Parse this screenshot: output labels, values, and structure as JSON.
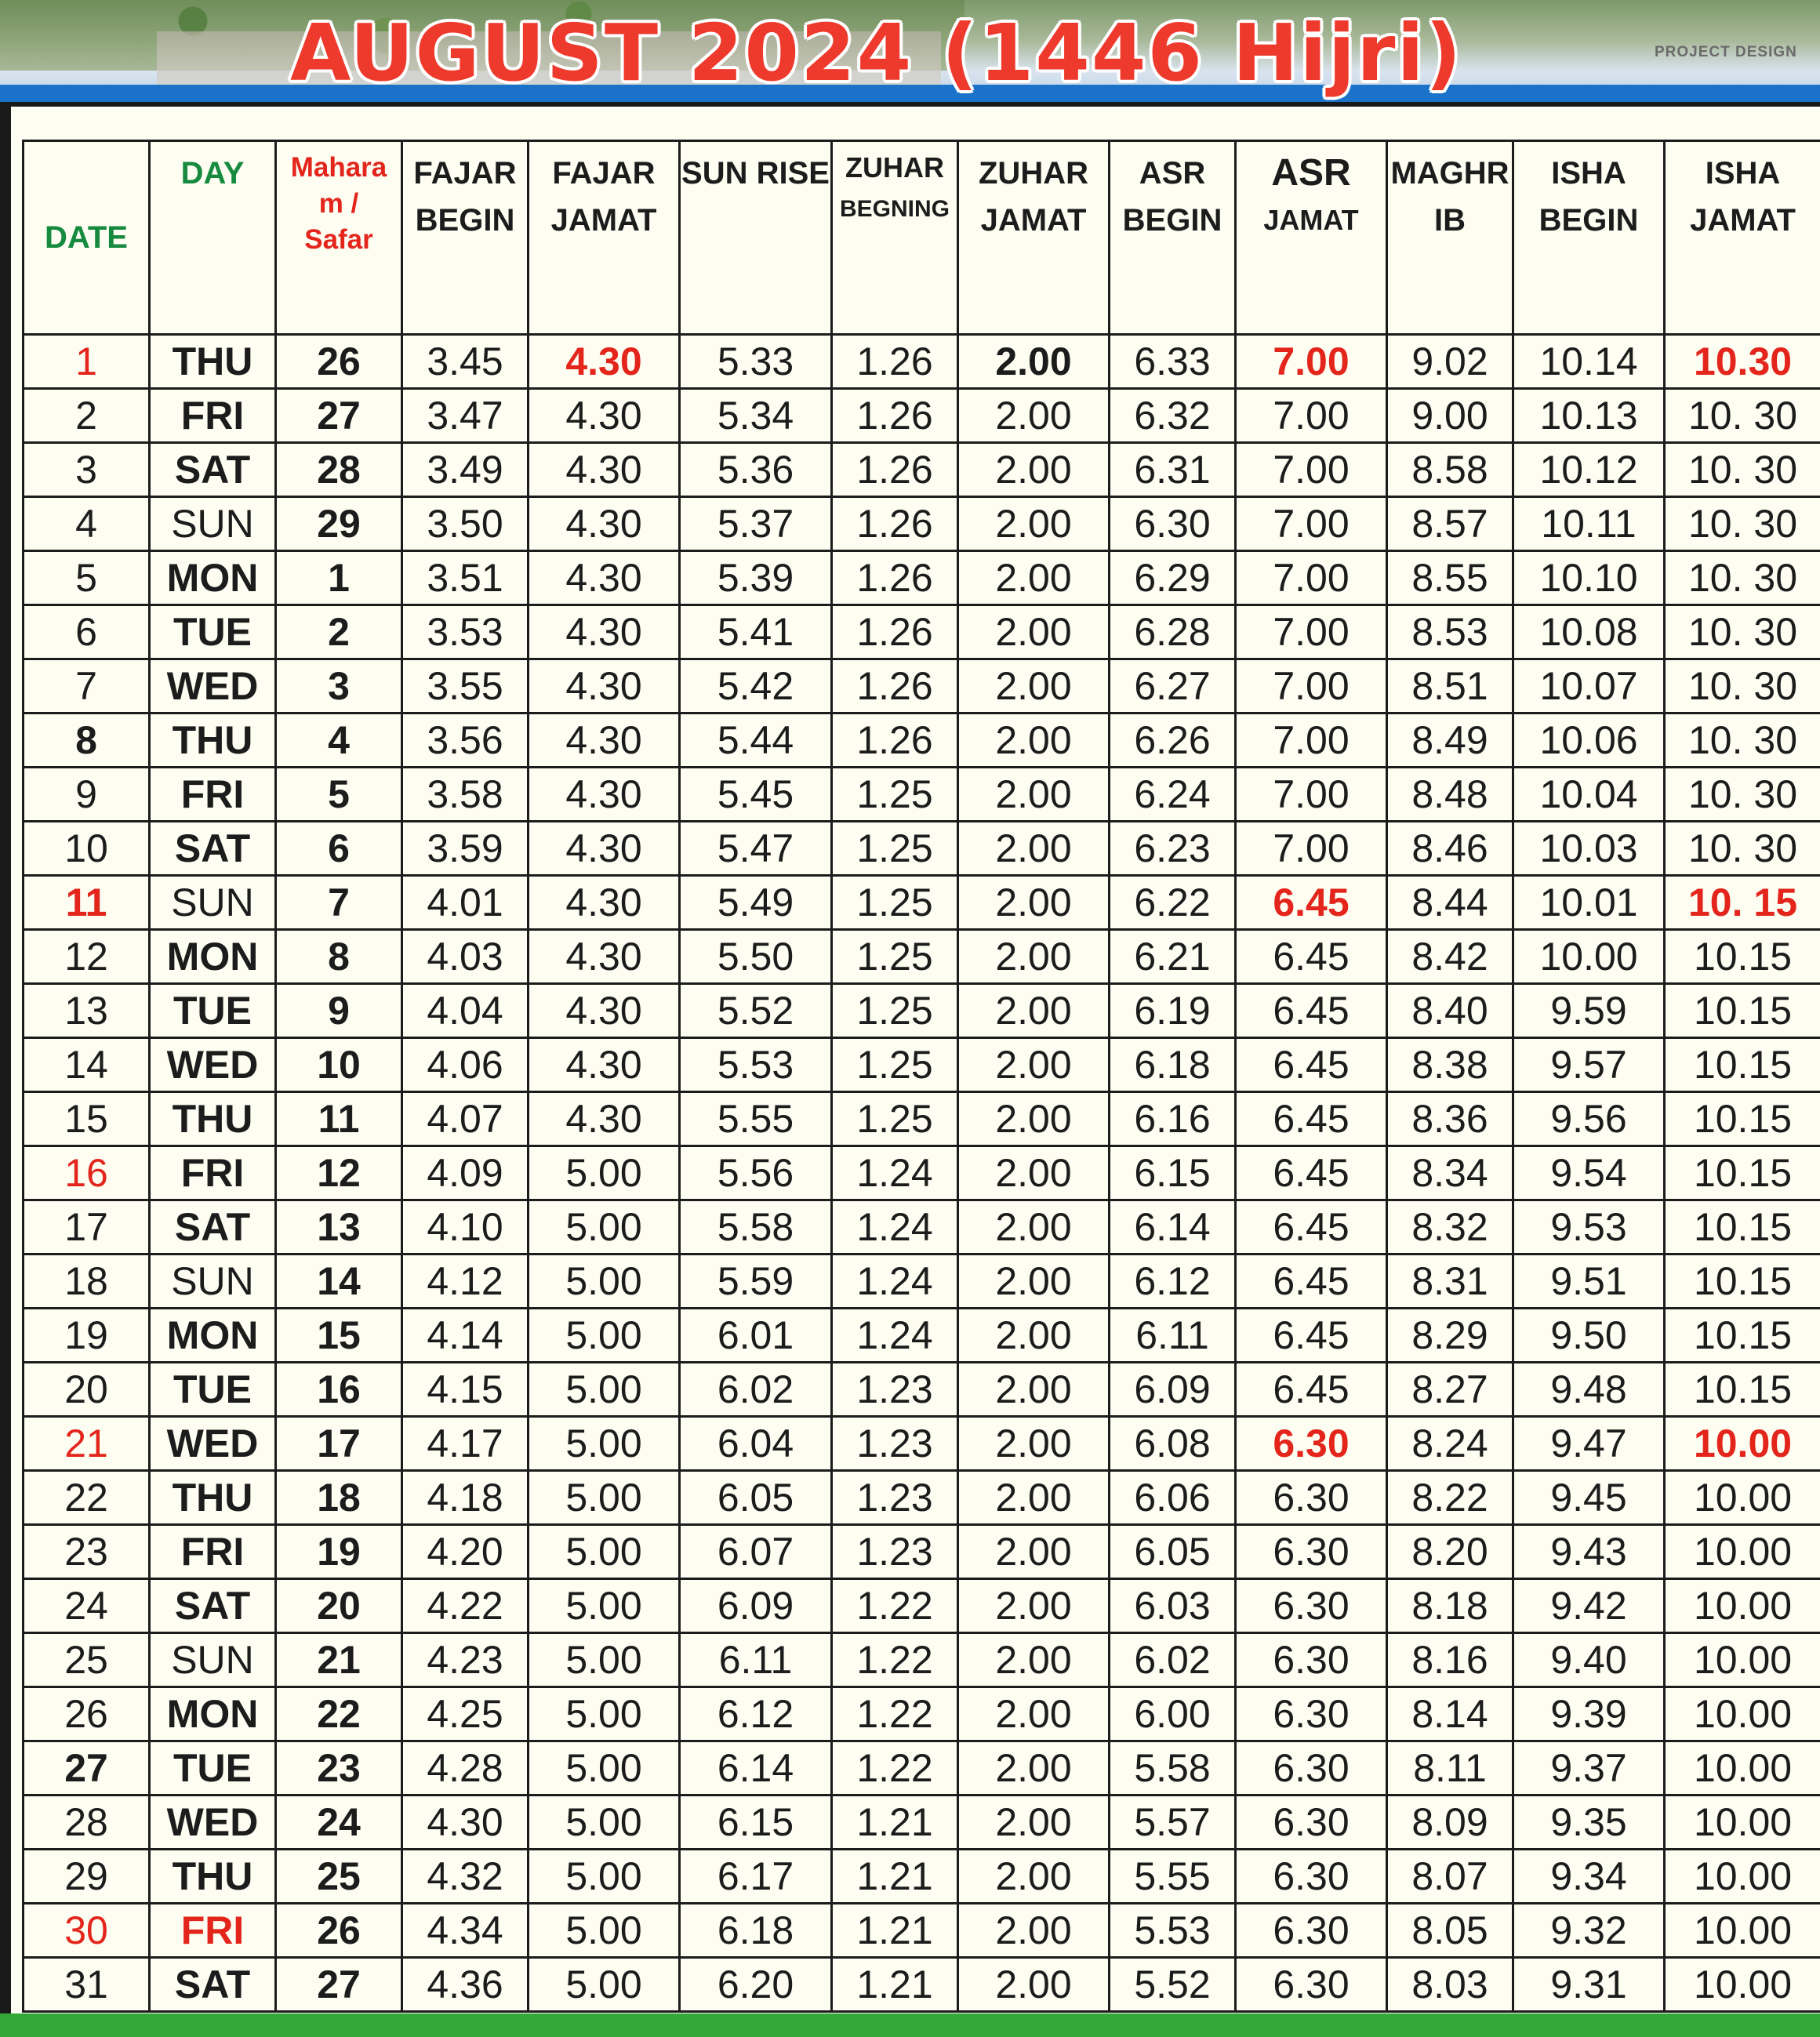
{
  "header": {
    "title": "AUGUST 2024  (1446 Hijri)",
    "credit": "PROJECT DESIGN"
  },
  "columns": [
    {
      "l1": "DATE",
      "l2": ""
    },
    {
      "l1": "DAY",
      "l2": ""
    },
    {
      "l1": "Mahara m /",
      "l2": "Safar"
    },
    {
      "l1": "FAJAR",
      "l2": "BEGIN"
    },
    {
      "l1": "FAJAR",
      "l2": "JAMAT"
    },
    {
      "l1": "SUN RISE",
      "l2": ""
    },
    {
      "l1": "ZUHAR",
      "l2": "BEGNING"
    },
    {
      "l1": "ZUHAR",
      "l2": "JAMAT"
    },
    {
      "l1": "ASR",
      "l2": "BEGIN"
    },
    {
      "l1": "ASR",
      "l2": "JAMAT"
    },
    {
      "l1": "MAGHR",
      "l2": "IB"
    },
    {
      "l1": "ISHA",
      "l2": "BEGIN"
    },
    {
      "l1": "ISHA",
      "l2": "JAMAT"
    }
  ],
  "rows": [
    [
      "1",
      "THU",
      "26",
      "3.45",
      "4.30",
      "5.33",
      "1.26",
      "2.00",
      "6.33",
      "7.00",
      "9.02",
      "10.14",
      "10.30"
    ],
    [
      "2",
      "FRI",
      "27",
      "3.47",
      "4.30",
      "5.34",
      "1.26",
      "2.00",
      "6.32",
      "7.00",
      "9.00",
      "10.13",
      "10. 30"
    ],
    [
      "3",
      "SAT",
      "28",
      "3.49",
      "4.30",
      "5.36",
      "1.26",
      "2.00",
      "6.31",
      "7.00",
      "8.58",
      "10.12",
      "10. 30"
    ],
    [
      "4",
      "SUN",
      "29",
      "3.50",
      "4.30",
      "5.37",
      "1.26",
      "2.00",
      "6.30",
      "7.00",
      "8.57",
      "10.11",
      "10. 30"
    ],
    [
      "5",
      "MON",
      "1",
      "3.51",
      "4.30",
      "5.39",
      "1.26",
      "2.00",
      "6.29",
      "7.00",
      "8.55",
      "10.10",
      "10. 30"
    ],
    [
      "6",
      "TUE",
      "2",
      "3.53",
      "4.30",
      "5.41",
      "1.26",
      "2.00",
      "6.28",
      "7.00",
      "8.53",
      "10.08",
      "10. 30"
    ],
    [
      "7",
      "WED",
      "3",
      "3.55",
      "4.30",
      "5.42",
      "1.26",
      "2.00",
      "6.27",
      "7.00",
      "8.51",
      "10.07",
      "10. 30"
    ],
    [
      "8",
      "THU",
      "4",
      "3.56",
      "4.30",
      "5.44",
      "1.26",
      "2.00",
      "6.26",
      "7.00",
      "8.49",
      "10.06",
      "10. 30"
    ],
    [
      "9",
      "FRI",
      "5",
      "3.58",
      "4.30",
      "5.45",
      "1.25",
      "2.00",
      "6.24",
      "7.00",
      "8.48",
      "10.04",
      "10. 30"
    ],
    [
      "10",
      "SAT",
      "6",
      "3.59",
      "4.30",
      "5.47",
      "1.25",
      "2.00",
      "6.23",
      "7.00",
      "8.46",
      "10.03",
      "10. 30"
    ],
    [
      "11",
      "SUN",
      "7",
      "4.01",
      "4.30",
      "5.49",
      "1.25",
      "2.00",
      "6.22",
      "6.45",
      "8.44",
      "10.01",
      "10. 15"
    ],
    [
      "12",
      "MON",
      "8",
      "4.03",
      "4.30",
      "5.50",
      "1.25",
      "2.00",
      "6.21",
      "6.45",
      "8.42",
      "10.00",
      "10.15"
    ],
    [
      "13",
      "TUE",
      "9",
      "4.04",
      "4.30",
      "5.52",
      "1.25",
      "2.00",
      "6.19",
      "6.45",
      "8.40",
      "9.59",
      "10.15"
    ],
    [
      "14",
      "WED",
      "10",
      "4.06",
      "4.30",
      "5.53",
      "1.25",
      "2.00",
      "6.18",
      "6.45",
      "8.38",
      "9.57",
      "10.15"
    ],
    [
      "15",
      "THU",
      "11",
      "4.07",
      "4.30",
      "5.55",
      "1.25",
      "2.00",
      "6.16",
      "6.45",
      "8.36",
      "9.56",
      "10.15"
    ],
    [
      "16",
      "FRI",
      "12",
      "4.09",
      "5.00",
      "5.56",
      "1.24",
      "2.00",
      "6.15",
      "6.45",
      "8.34",
      "9.54",
      "10.15"
    ],
    [
      "17",
      "SAT",
      "13",
      "4.10",
      "5.00",
      "5.58",
      "1.24",
      "2.00",
      "6.14",
      "6.45",
      "8.32",
      "9.53",
      "10.15"
    ],
    [
      "18",
      "SUN",
      "14",
      "4.12",
      "5.00",
      "5.59",
      "1.24",
      "2.00",
      "6.12",
      "6.45",
      "8.31",
      "9.51",
      "10.15"
    ],
    [
      "19",
      "MON",
      "15",
      "4.14",
      "5.00",
      "6.01",
      "1.24",
      "2.00",
      "6.11",
      "6.45",
      "8.29",
      "9.50",
      "10.15"
    ],
    [
      "20",
      "TUE",
      "16",
      "4.15",
      "5.00",
      "6.02",
      "1.23",
      "2.00",
      "6.09",
      "6.45",
      "8.27",
      "9.48",
      "10.15"
    ],
    [
      "21",
      "WED",
      "17",
      "4.17",
      "5.00",
      "6.04",
      "1.23",
      "2.00",
      "6.08",
      "6.30",
      "8.24",
      "9.47",
      "10.00"
    ],
    [
      "22",
      "THU",
      "18",
      "4.18",
      "5.00",
      "6.05",
      "1.23",
      "2.00",
      "6.06",
      "6.30",
      "8.22",
      "9.45",
      "10.00"
    ],
    [
      "23",
      "FRI",
      "19",
      "4.20",
      "5.00",
      "6.07",
      "1.23",
      "2.00",
      "6.05",
      "6.30",
      "8.20",
      "9.43",
      "10.00"
    ],
    [
      "24",
      "SAT",
      "20",
      "4.22",
      "5.00",
      "6.09",
      "1.22",
      "2.00",
      "6.03",
      "6.30",
      "8.18",
      "9.42",
      "10.00"
    ],
    [
      "25",
      "SUN",
      "21",
      "4.23",
      "5.00",
      "6.11",
      "1.22",
      "2.00",
      "6.02",
      "6.30",
      "8.16",
      "9.40",
      "10.00"
    ],
    [
      "26",
      "MON",
      "22",
      "4.25",
      "5.00",
      "6.12",
      "1.22",
      "2.00",
      "6.00",
      "6.30",
      "8.14",
      "9.39",
      "10.00"
    ],
    [
      "27",
      "TUE",
      "23",
      "4.28",
      "5.00",
      "6.14",
      "1.22",
      "2.00",
      "5.58",
      "6.30",
      "8.11",
      "9.37",
      "10.00"
    ],
    [
      "28",
      "WED",
      "24",
      "4.30",
      "5.00",
      "6.15",
      "1.21",
      "2.00",
      "5.57",
      "6.30",
      "8.09",
      "9.35",
      "10.00"
    ],
    [
      "29",
      "THU",
      "25",
      "4.32",
      "5.00",
      "6.17",
      "1.21",
      "2.00",
      "5.55",
      "6.30",
      "8.07",
      "9.34",
      "10.00"
    ],
    [
      "30",
      "FRI",
      "26",
      "4.34",
      "5.00",
      "6.18",
      "1.21",
      "2.00",
      "5.53",
      "6.30",
      "8.05",
      "9.32",
      "10.00"
    ],
    [
      "31",
      "SAT",
      "27",
      "4.36",
      "5.00",
      "6.20",
      "1.21",
      "2.00",
      "5.52",
      "6.30",
      "8.03",
      "9.31",
      "10.00"
    ]
  ],
  "highlights": {
    "red_dates": [
      "1",
      "11",
      "16",
      "21",
      "30"
    ],
    "bold_green_dates": [
      "8",
      "27"
    ],
    "red_cells": [
      {
        "row": 1,
        "col": 4
      },
      {
        "row": 1,
        "col": 9
      },
      {
        "row": 1,
        "col": 12
      },
      {
        "row": 11,
        "col": 9
      },
      {
        "row": 11,
        "col": 12
      },
      {
        "row": 21,
        "col": 9
      },
      {
        "row": 21,
        "col": 12
      }
    ],
    "bold_cells": [
      {
        "row": 1,
        "col": 7
      }
    ],
    "colors": {
      "red": "#e3251c",
      "green": "#168a3e",
      "text": "#1c1c1c",
      "title": "#ee3a2c",
      "paper": "#fdfdf2"
    }
  }
}
